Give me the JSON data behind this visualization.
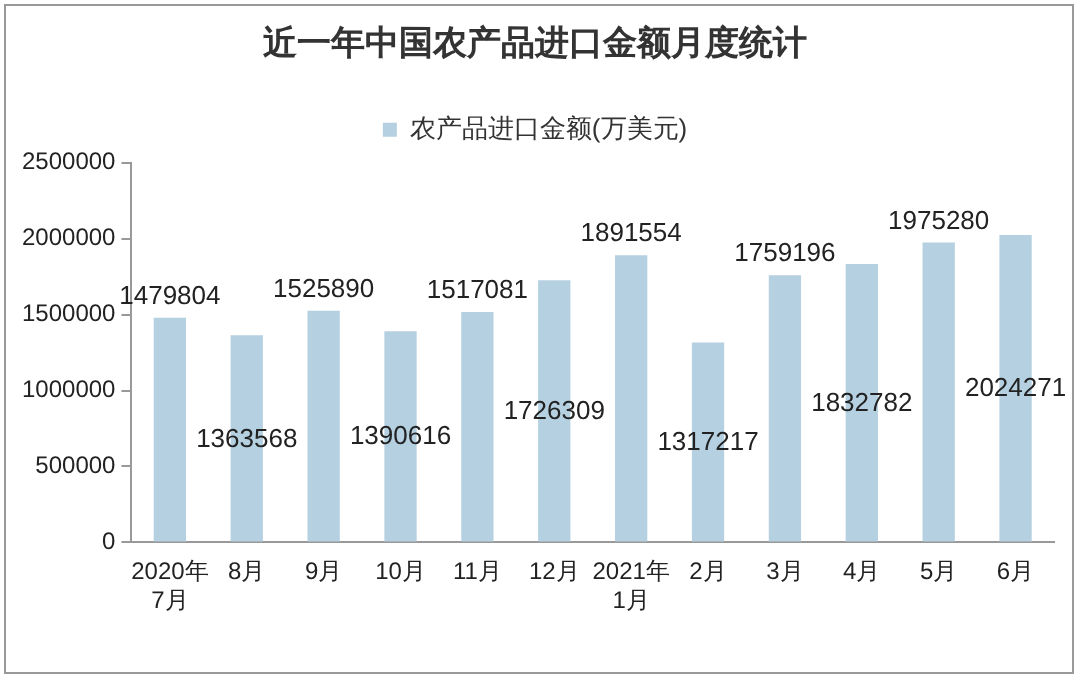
{
  "chart_data": {
    "type": "bar",
    "title": "近一年中国农产品进口金额月度统计",
    "categories": [
      "2020年\n7月",
      "8月",
      "9月",
      "10月",
      "11月",
      "12月",
      "2021年\n1月",
      "2月",
      "3月",
      "4月",
      "5月",
      "6月"
    ],
    "series": [
      {
        "name": "农产品进口金额(万美元)",
        "color": "#b4d0e1",
        "values": [
          1479804,
          1363568,
          1525890,
          1390616,
          1517081,
          1726309,
          1891554,
          1317217,
          1759196,
          1832782,
          1975280,
          2024271
        ]
      }
    ],
    "ylim": [
      0,
      2500000
    ],
    "yticks": [
      0,
      500000,
      1000000,
      1500000,
      2000000,
      2500000
    ],
    "grid": false,
    "legend": "top",
    "data_labels": true
  }
}
